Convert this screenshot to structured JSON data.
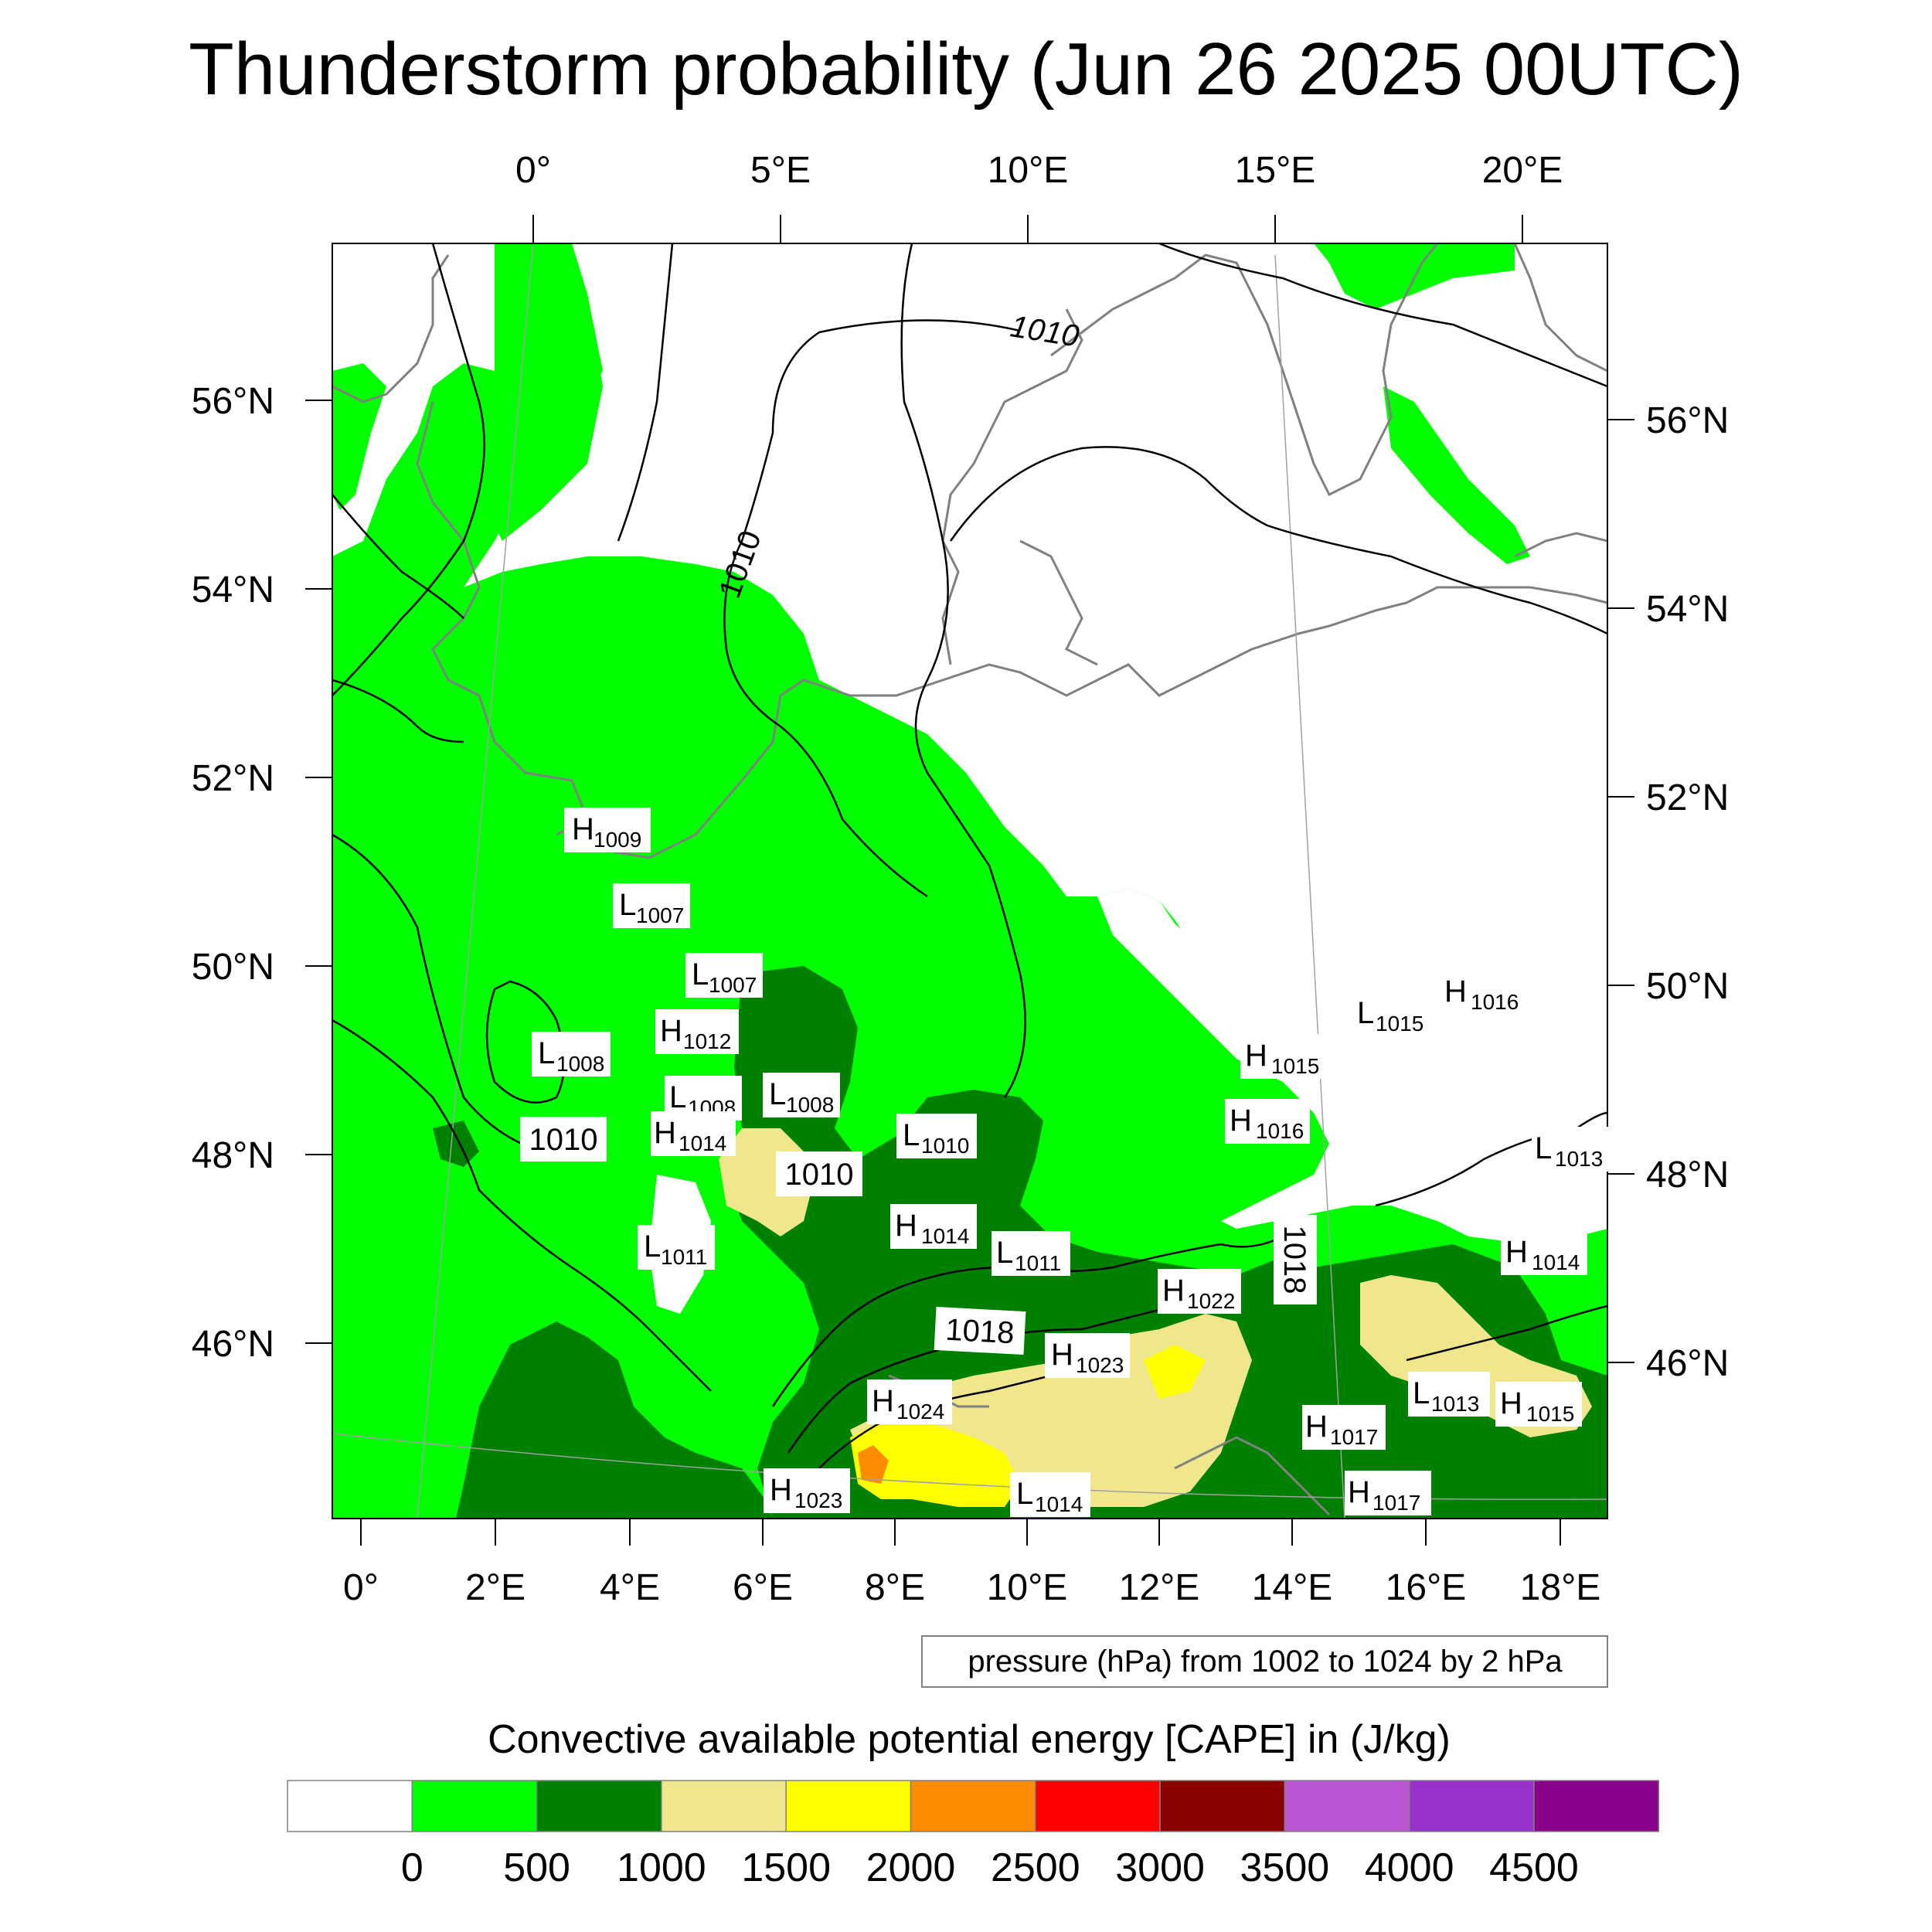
{
  "title": "Thunderstorm probability (Jun 26 2025 00UTC)",
  "top_ticks": [
    "0°",
    "5°E",
    "10°E",
    "15°E",
    "20°E"
  ],
  "left_ticks": [
    "56°N",
    "54°N",
    "52°N",
    "50°N",
    "48°N",
    "46°N"
  ],
  "right_ticks": [
    "56°N",
    "54°N",
    "52°N",
    "50°N",
    "48°N",
    "46°N"
  ],
  "bottom_ticks": [
    "0°",
    "2°E",
    "4°E",
    "6°E",
    "8°E",
    "10°E",
    "12°E",
    "14°E",
    "16°E",
    "18°E"
  ],
  "pressure_info": "pressure (hPa) from 1002 to 1024 by 2 hPa",
  "colorbar": {
    "title": "Convective available potential energy [CAPE] in (J/kg)",
    "colors": [
      "#ffffff",
      "#00ff00",
      "#008000",
      "#f0e68c",
      "#ffff00",
      "#ff8c00",
      "#ff0000",
      "#8b0000",
      "#ba55d3",
      "#9932cc",
      "#8b008b"
    ],
    "ticks": [
      "0",
      "500",
      "1000",
      "1500",
      "2000",
      "2500",
      "3000",
      "3500",
      "4000",
      "4500"
    ]
  },
  "pressure_centers": [
    {
      "t": "H",
      "v": "1009"
    },
    {
      "t": "L",
      "v": "1007"
    },
    {
      "t": "L",
      "v": "1007"
    },
    {
      "t": "H",
      "v": "1012"
    },
    {
      "t": "L",
      "v": "1008"
    },
    {
      "t": "L",
      "v": "1008"
    },
    {
      "t": "L",
      "v": "1008"
    },
    {
      "t": "H",
      "v": "1014"
    },
    {
      "t": "L",
      "v": "1010"
    },
    {
      "t": "L",
      "v": "1011"
    },
    {
      "t": "H",
      "v": "1014"
    },
    {
      "t": "L",
      "v": "1011"
    },
    {
      "t": "H",
      "v": "1022"
    },
    {
      "t": "H",
      "v": "1023"
    },
    {
      "t": "H",
      "v": "1024"
    },
    {
      "t": "H",
      "v": "1023"
    },
    {
      "t": "L",
      "v": "1014"
    },
    {
      "t": "H",
      "v": "1017"
    },
    {
      "t": "H",
      "v": "1017"
    },
    {
      "t": "L",
      "v": "1013"
    },
    {
      "t": "H",
      "v": "1015"
    },
    {
      "t": "H",
      "v": "1014"
    },
    {
      "t": "L",
      "v": "1013"
    },
    {
      "t": "H",
      "v": "1015"
    },
    {
      "t": "L",
      "v": "1015"
    },
    {
      "t": "H",
      "v": "1016"
    },
    {
      "t": "H",
      "v": "1016"
    }
  ],
  "isobar_labels": [
    "1010",
    "1010",
    "1010",
    "1010",
    "1018",
    "1018"
  ]
}
